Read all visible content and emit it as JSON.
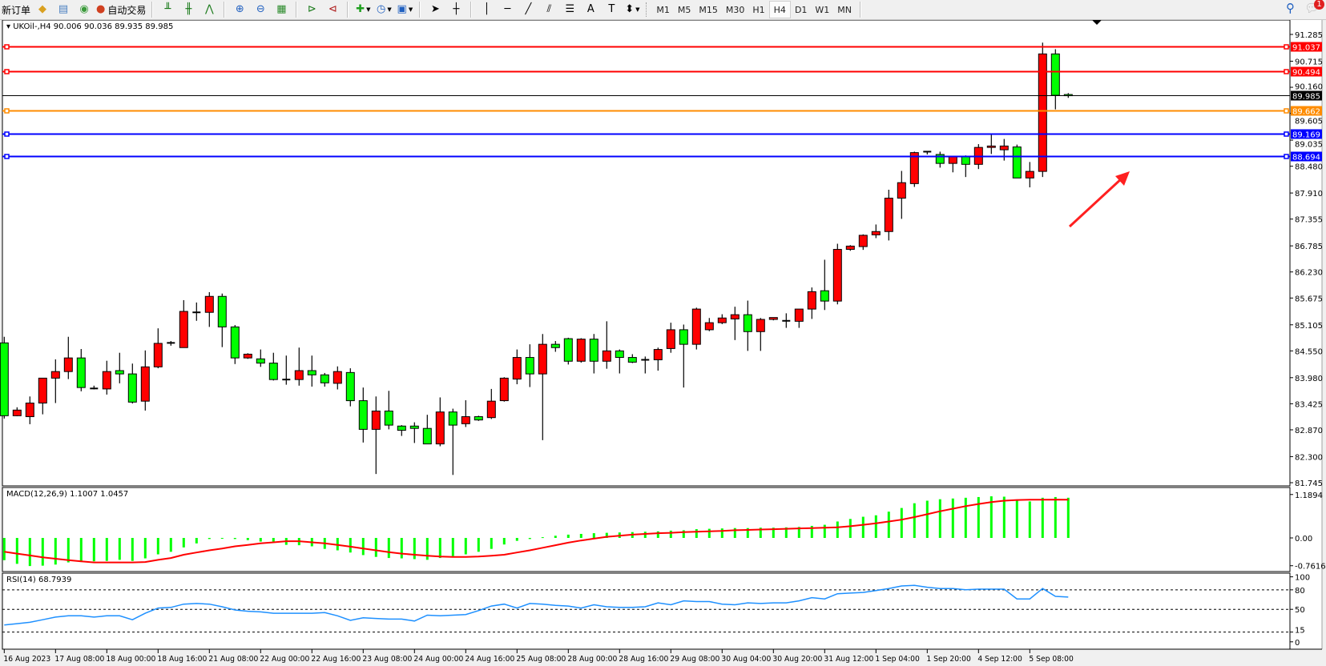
{
  "toolbar": {
    "new_order_label": "新订单",
    "auto_trading_label": "自动交易",
    "icons": [
      "book-icon",
      "server-icon",
      "signal-icon",
      "auto-trading-icon",
      "bar-chart-icon",
      "candlestick-icon",
      "line-chart-icon",
      "zoom-in-icon",
      "zoom-out-icon",
      "tile-windows-icon",
      "auto-scroll-icon",
      "chart-shift-icon",
      "new-indicator-icon",
      "periods-icon",
      "templates-icon",
      "cursor-icon",
      "crosshair-icon",
      "vertical-line-icon",
      "horizontal-line-icon",
      "trendline-icon",
      "equidistant-channel-icon",
      "fibonacci-icon",
      "text-icon",
      "text-label-icon",
      "arrows-icon"
    ],
    "timeframes": [
      "M1",
      "M5",
      "M15",
      "M30",
      "H1",
      "H4",
      "D1",
      "W1",
      "MN"
    ],
    "active_timeframe": "H4",
    "notification_count": "1"
  },
  "chart": {
    "title": "UKOil-,H4  90.006 90.036 89.935 89.985",
    "symbol": "UKOil-",
    "timeframe": "H4",
    "ohlc": {
      "open": 90.006,
      "high": 90.036,
      "low": 89.935,
      "close": 89.985
    },
    "colors": {
      "bull": "#ff0000",
      "bear": "#00ff00",
      "outline": "#000000"
    }
  },
  "chart_data": [
    {
      "type": "candlestick",
      "ylim": [
        81.745,
        91.285
      ],
      "price_ticks": [
        "91.285",
        "90.715",
        "90.160",
        "89.605",
        "89.035",
        "88.480",
        "87.910",
        "87.355",
        "86.785",
        "86.230",
        "85.675",
        "85.105",
        "84.550",
        "83.980",
        "83.425",
        "82.870",
        "82.300",
        "81.745"
      ],
      "time_labels": [
        "16 Aug 2023",
        "17 Aug 08:00",
        "18 Aug 00:00",
        "18 Aug 16:00",
        "21 Aug 08:00",
        "22 Aug 00:00",
        "22 Aug 16:00",
        "23 Aug 08:00",
        "24 Aug 00:00",
        "24 Aug 16:00",
        "25 Aug 08:00",
        "28 Aug 00:00",
        "28 Aug 16:00",
        "29 Aug 08:00",
        "30 Aug 04:00",
        "30 Aug 20:00",
        "31 Aug 12:00",
        "1 Sep 04:00",
        "1 Sep 20:00",
        "4 Sep 12:00",
        "5 Sep 08:00"
      ],
      "time_label_every_n_bars": 4,
      "horizontal_lines": [
        {
          "price": "91.037",
          "color": "#ff0000"
        },
        {
          "price": "90.494",
          "color": "#ff0000"
        },
        {
          "price": "89.985",
          "color": "#000000"
        },
        {
          "price": "89.662",
          "color": "#ff8c00"
        },
        {
          "price": "89.169",
          "color": "#0000ff"
        },
        {
          "price": "88.694",
          "color": "#0000ff"
        }
      ],
      "annotation_arrow_color": "#ff2020",
      "ohlc": [
        [
          84.72,
          84.85,
          83.11,
          83.17
        ],
        [
          83.17,
          83.35,
          83.16,
          83.29
        ],
        [
          83.15,
          83.58,
          82.99,
          83.44
        ],
        [
          83.44,
          83.97,
          83.2,
          83.97
        ],
        [
          83.97,
          84.37,
          83.44,
          84.11
        ],
        [
          84.11,
          84.85,
          83.95,
          84.4
        ],
        [
          84.4,
          84.59,
          83.69,
          83.77
        ],
        [
          83.75,
          83.81,
          83.73,
          83.75
        ],
        [
          83.74,
          84.34,
          83.62,
          84.11
        ],
        [
          84.13,
          84.51,
          83.86,
          84.06
        ],
        [
          84.06,
          84.28,
          83.43,
          83.46
        ],
        [
          83.48,
          84.56,
          83.28,
          84.21
        ],
        [
          84.21,
          85.03,
          84.18,
          84.71
        ],
        [
          84.72,
          84.76,
          84.66,
          84.72
        ],
        [
          84.62,
          85.63,
          84.62,
          85.39
        ],
        [
          85.37,
          85.58,
          85.19,
          85.37
        ],
        [
          85.37,
          85.8,
          85.06,
          85.71
        ],
        [
          85.71,
          85.77,
          84.63,
          85.06
        ],
        [
          85.06,
          85.1,
          84.27,
          84.4
        ],
        [
          84.4,
          84.5,
          84.38,
          84.48
        ],
        [
          84.38,
          84.58,
          84.21,
          84.29
        ],
        [
          84.29,
          84.51,
          83.92,
          83.94
        ],
        [
          83.94,
          84.45,
          83.83,
          83.94
        ],
        [
          83.94,
          84.62,
          83.81,
          84.13
        ],
        [
          84.13,
          84.45,
          83.79,
          84.04
        ],
        [
          84.04,
          84.08,
          83.79,
          83.87
        ],
        [
          83.86,
          84.22,
          83.73,
          84.11
        ],
        [
          84.09,
          84.18,
          83.37,
          83.49
        ],
        [
          83.49,
          83.77,
          82.6,
          82.88
        ],
        [
          82.88,
          83.58,
          81.93,
          83.27
        ],
        [
          83.27,
          83.7,
          82.88,
          82.97
        ],
        [
          82.95,
          82.97,
          82.74,
          82.86
        ],
        [
          82.95,
          83.03,
          82.59,
          82.9
        ],
        [
          82.9,
          83.19,
          82.57,
          82.57
        ],
        [
          82.57,
          83.56,
          82.52,
          83.25
        ],
        [
          83.25,
          83.32,
          81.91,
          82.97
        ],
        [
          83.0,
          83.5,
          82.93,
          83.15
        ],
        [
          83.15,
          83.17,
          83.06,
          83.08
        ],
        [
          83.13,
          83.74,
          83.1,
          83.48
        ],
        [
          83.49,
          83.99,
          83.47,
          83.97
        ],
        [
          83.95,
          84.58,
          83.84,
          84.41
        ],
        [
          84.41,
          84.69,
          83.78,
          84.06
        ],
        [
          84.06,
          84.91,
          82.65,
          84.69
        ],
        [
          84.69,
          84.76,
          84.53,
          84.62
        ],
        [
          84.81,
          84.83,
          84.26,
          84.33
        ],
        [
          84.33,
          84.82,
          84.3,
          84.8
        ],
        [
          84.8,
          84.91,
          84.07,
          84.33
        ],
        [
          84.33,
          85.18,
          84.17,
          84.55
        ],
        [
          84.55,
          84.58,
          84.07,
          84.41
        ],
        [
          84.41,
          84.48,
          84.29,
          84.31
        ],
        [
          84.36,
          84.43,
          84.07,
          84.36
        ],
        [
          84.36,
          84.62,
          84.13,
          84.58
        ],
        [
          84.6,
          85.15,
          84.51,
          85.0
        ],
        [
          85.0,
          85.11,
          83.77,
          84.69
        ],
        [
          84.69,
          85.47,
          84.58,
          85.44
        ],
        [
          85.0,
          85.25,
          84.97,
          85.15
        ],
        [
          85.15,
          85.33,
          85.12,
          85.25
        ],
        [
          85.23,
          85.49,
          84.78,
          85.32
        ],
        [
          85.32,
          85.62,
          84.55,
          84.96
        ],
        [
          84.96,
          85.25,
          84.55,
          85.22
        ],
        [
          85.22,
          85.26,
          85.2,
          85.26
        ],
        [
          85.19,
          85.35,
          85.04,
          85.19
        ],
        [
          85.18,
          85.44,
          85.04,
          85.44
        ],
        [
          85.44,
          85.9,
          85.23,
          85.81
        ],
        [
          85.83,
          86.49,
          85.42,
          85.61
        ],
        [
          85.61,
          86.83,
          85.54,
          86.71
        ],
        [
          86.71,
          86.8,
          86.68,
          86.78
        ],
        [
          86.77,
          87.03,
          86.7,
          87.01
        ],
        [
          87.02,
          87.24,
          86.95,
          87.09
        ],
        [
          87.09,
          87.98,
          86.9,
          87.8
        ],
        [
          87.8,
          88.38,
          87.36,
          88.13
        ],
        [
          88.11,
          88.79,
          88.04,
          88.77
        ],
        [
          88.79,
          88.79,
          88.73,
          88.79
        ],
        [
          88.73,
          88.79,
          88.45,
          88.54
        ],
        [
          88.54,
          88.68,
          88.35,
          88.68
        ],
        [
          88.68,
          88.71,
          88.25,
          88.52
        ],
        [
          88.52,
          88.95,
          88.42,
          88.88
        ],
        [
          88.88,
          89.16,
          88.74,
          88.91
        ],
        [
          88.83,
          89.06,
          88.6,
          88.91
        ],
        [
          88.89,
          88.94,
          88.23,
          88.23
        ],
        [
          88.23,
          88.57,
          88.03,
          88.37
        ],
        [
          88.37,
          91.11,
          88.25,
          90.87
        ],
        [
          90.87,
          90.97,
          89.69,
          89.99
        ],
        [
          90.006,
          90.036,
          89.935,
          89.985
        ]
      ]
    },
    {
      "type": "bar+line",
      "label": "MACD(12,26,9) 1.1007 1.0457",
      "ylim": [
        -0.7616,
        1.1894
      ],
      "ticks": [
        "1.1894",
        "0.00",
        "-0.7616"
      ],
      "colors": {
        "histogram": "#00ff00",
        "signal": "#ff0000"
      },
      "macd": [
        -0.61,
        -0.71,
        -0.77,
        -0.76,
        -0.73,
        -0.67,
        -0.66,
        -0.64,
        -0.63,
        -0.6,
        -0.63,
        -0.56,
        -0.45,
        -0.38,
        -0.26,
        -0.15,
        -0.03,
        -0.02,
        -0.03,
        -0.06,
        -0.1,
        -0.1,
        -0.19,
        -0.2,
        -0.23,
        -0.3,
        -0.34,
        -0.4,
        -0.47,
        -0.52,
        -0.55,
        -0.56,
        -0.58,
        -0.6,
        -0.55,
        -0.5,
        -0.45,
        -0.38,
        -0.3,
        -0.18,
        -0.08,
        -0.03,
        0.02,
        0.06,
        0.09,
        0.11,
        0.13,
        0.14,
        0.15,
        0.16,
        0.17,
        0.18,
        0.2,
        0.21,
        0.24,
        0.25,
        0.26,
        0.27,
        0.27,
        0.28,
        0.28,
        0.29,
        0.3,
        0.33,
        0.36,
        0.45,
        0.52,
        0.58,
        0.62,
        0.72,
        0.82,
        0.95,
        1.02,
        1.06,
        1.08,
        1.1,
        1.12,
        1.14,
        1.13,
        1.05,
        1.0,
        1.1,
        1.12,
        1.1007
      ],
      "signal": [
        -0.38,
        -0.43,
        -0.48,
        -0.53,
        -0.57,
        -0.61,
        -0.64,
        -0.67,
        -0.67,
        -0.67,
        -0.67,
        -0.66,
        -0.6,
        -0.55,
        -0.46,
        -0.4,
        -0.34,
        -0.29,
        -0.23,
        -0.19,
        -0.15,
        -0.12,
        -0.09,
        -0.09,
        -0.12,
        -0.15,
        -0.19,
        -0.24,
        -0.29,
        -0.34,
        -0.39,
        -0.43,
        -0.46,
        -0.49,
        -0.51,
        -0.52,
        -0.52,
        -0.51,
        -0.49,
        -0.46,
        -0.4,
        -0.34,
        -0.27,
        -0.2,
        -0.13,
        -0.07,
        -0.02,
        0.03,
        0.06,
        0.09,
        0.11,
        0.13,
        0.14,
        0.16,
        0.17,
        0.18,
        0.19,
        0.21,
        0.22,
        0.23,
        0.24,
        0.25,
        0.26,
        0.27,
        0.28,
        0.29,
        0.32,
        0.36,
        0.4,
        0.45,
        0.5,
        0.57,
        0.65,
        0.73,
        0.8,
        0.87,
        0.93,
        0.98,
        1.02,
        1.04,
        1.045,
        1.045,
        1.05,
        1.0457
      ]
    },
    {
      "type": "line",
      "label": "RSI(14) 68.7939",
      "ylim": [
        0,
        100
      ],
      "ticks": [
        "100",
        "80",
        "50",
        "15",
        "0"
      ],
      "levels": [
        80,
        50,
        15
      ],
      "color": "#1e90ff",
      "values": [
        26,
        28,
        30,
        34,
        38,
        40,
        40,
        38,
        40,
        40,
        34,
        44,
        52,
        53,
        58,
        59,
        58,
        54,
        49,
        47,
        46,
        44,
        44,
        44,
        44,
        45,
        40,
        33,
        37,
        36,
        35,
        35,
        32,
        41,
        40,
        41,
        42,
        48,
        55,
        58,
        52,
        59,
        58,
        56,
        55,
        52,
        57,
        54,
        53,
        53,
        54,
        60,
        57,
        63,
        62,
        62,
        58,
        57,
        60,
        59,
        60,
        60,
        63,
        68,
        66,
        74,
        75,
        76,
        79,
        82,
        86,
        87,
        84,
        82,
        82,
        80,
        81,
        81,
        81,
        66,
        66,
        82,
        70,
        68.7939
      ]
    }
  ]
}
